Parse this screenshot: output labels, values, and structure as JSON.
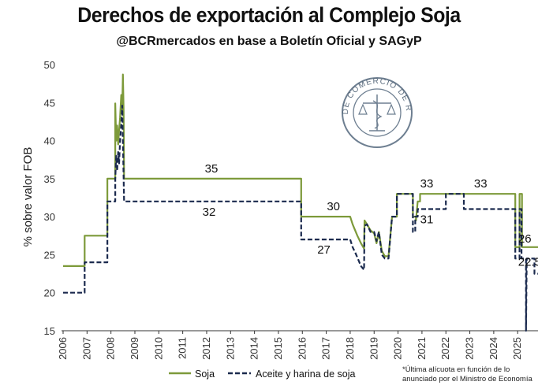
{
  "chart_data": {
    "type": "line",
    "title": "Derechos de exportación al Complejo Soja",
    "subtitle": "@BCRmercados en base a Boletín Oficial y SAGyP",
    "ylabel": "% sobre valor FOB",
    "xlabel": "",
    "xlim": [
      2006,
      2025.85
    ],
    "ylim": [
      15,
      50
    ],
    "x_ticks": [
      "2006",
      "2007",
      "2008",
      "2009",
      "2010",
      "2011",
      "2012",
      "2013",
      "2014",
      "2015",
      "2016",
      "2017",
      "2018",
      "2019",
      "2020",
      "2021",
      "2022",
      "2023",
      "2024",
      "2025"
    ],
    "y_ticks": [
      15,
      20,
      25,
      30,
      35,
      40,
      45,
      50
    ],
    "grid": false,
    "legend_position": "bottom",
    "series": [
      {
        "name": "Soja",
        "color": "#7d9a3a",
        "style": "solid",
        "points": [
          [
            2006.0,
            23.5
          ],
          [
            2006.9,
            23.5
          ],
          [
            2006.9,
            27.5
          ],
          [
            2007.85,
            27.5
          ],
          [
            2007.85,
            35
          ],
          [
            2008.18,
            35
          ],
          [
            2008.18,
            44.9
          ],
          [
            2008.22,
            40
          ],
          [
            2008.26,
            42
          ],
          [
            2008.3,
            39.5
          ],
          [
            2008.33,
            41
          ],
          [
            2008.38,
            43
          ],
          [
            2008.43,
            46
          ],
          [
            2008.47,
            44
          ],
          [
            2008.5,
            48.7
          ],
          [
            2008.53,
            44
          ],
          [
            2008.55,
            35
          ],
          [
            2015.95,
            35
          ],
          [
            2015.95,
            30
          ],
          [
            2018.0,
            30
          ],
          [
            2018.1,
            29
          ],
          [
            2018.3,
            27.5
          ],
          [
            2018.45,
            26.5
          ],
          [
            2018.58,
            25.8
          ],
          [
            2018.6,
            29.5
          ],
          [
            2018.7,
            29
          ],
          [
            2018.85,
            28.2
          ],
          [
            2019.0,
            27.8
          ],
          [
            2019.1,
            26.5
          ],
          [
            2019.2,
            28
          ],
          [
            2019.32,
            25.5
          ],
          [
            2019.45,
            24.8
          ],
          [
            2019.6,
            24.8
          ],
          [
            2019.75,
            30
          ],
          [
            2019.95,
            30
          ],
          [
            2019.95,
            33
          ],
          [
            2020.62,
            33
          ],
          [
            2020.62,
            30
          ],
          [
            2020.75,
            30
          ],
          [
            2020.75,
            29.5
          ],
          [
            2020.82,
            32
          ],
          [
            2020.92,
            32
          ],
          [
            2020.92,
            33
          ],
          [
            2022.15,
            33
          ],
          [
            2022.15,
            33
          ],
          [
            2024.9,
            33
          ],
          [
            2024.9,
            26
          ],
          [
            2025.08,
            26
          ],
          [
            2025.08,
            33
          ],
          [
            2025.18,
            33
          ],
          [
            2025.18,
            26
          ],
          [
            2025.85,
            26
          ]
        ]
      },
      {
        "name": "Aceite y harina de soja",
        "color": "#1b2a4e",
        "style": "dashed",
        "points": [
          [
            2006.0,
            20
          ],
          [
            2006.9,
            20
          ],
          [
            2006.9,
            24
          ],
          [
            2007.85,
            24
          ],
          [
            2007.85,
            32
          ],
          [
            2008.18,
            32
          ],
          [
            2008.18,
            35
          ],
          [
            2008.22,
            38
          ],
          [
            2008.26,
            36
          ],
          [
            2008.3,
            38.5
          ],
          [
            2008.34,
            37
          ],
          [
            2008.38,
            40
          ],
          [
            2008.43,
            42
          ],
          [
            2008.47,
            44.6
          ],
          [
            2008.5,
            40
          ],
          [
            2008.55,
            32
          ],
          [
            2015.95,
            32
          ],
          [
            2015.95,
            27
          ],
          [
            2018.0,
            27
          ],
          [
            2018.1,
            26
          ],
          [
            2018.25,
            25
          ],
          [
            2018.45,
            23.5
          ],
          [
            2018.58,
            23
          ],
          [
            2018.6,
            28.8
          ],
          [
            2018.7,
            29
          ],
          [
            2018.85,
            28
          ],
          [
            2019.0,
            28
          ],
          [
            2019.1,
            26.8
          ],
          [
            2019.2,
            28
          ],
          [
            2019.32,
            25
          ],
          [
            2019.45,
            24.5
          ],
          [
            2019.6,
            24.5
          ],
          [
            2019.75,
            30
          ],
          [
            2019.95,
            30
          ],
          [
            2019.95,
            33
          ],
          [
            2020.62,
            33
          ],
          [
            2020.62,
            28
          ],
          [
            2020.72,
            28
          ],
          [
            2020.72,
            30
          ],
          [
            2020.82,
            30
          ],
          [
            2020.82,
            31
          ],
          [
            2022.0,
            31
          ],
          [
            2022.0,
            33
          ],
          [
            2022.75,
            33
          ],
          [
            2022.75,
            31
          ],
          [
            2024.9,
            31
          ],
          [
            2024.9,
            24.5
          ],
          [
            2025.08,
            24.5
          ],
          [
            2025.08,
            31
          ],
          [
            2025.16,
            31
          ],
          [
            2025.16,
            24.5
          ],
          [
            2025.35,
            24.5
          ],
          [
            2025.35,
            15
          ],
          [
            2025.38,
            24.5
          ],
          [
            2025.7,
            24.5
          ],
          [
            2025.7,
            22.5
          ],
          [
            2025.85,
            22.5
          ]
        ]
      }
    ],
    "annotations": [
      {
        "text": "35",
        "x": 2012.2,
        "y": 35
      },
      {
        "text": "32",
        "x": 2012.1,
        "y": 32
      },
      {
        "text": "30",
        "x": 2017.3,
        "y": 30
      },
      {
        "text": "27",
        "x": 2016.9,
        "y": 27
      },
      {
        "text": "33",
        "x": 2021.2,
        "y": 33
      },
      {
        "text": "31",
        "x": 2021.2,
        "y": 31
      },
      {
        "text": "33",
        "x": 2023.45,
        "y": 33
      },
      {
        "text": "26",
        "x": 2025.3,
        "y": 26
      },
      {
        "text": "22.5",
        "x": 2025.5,
        "y": 22.5
      }
    ],
    "footnote": [
      "*Última alícuota en función de lo",
      "anunciado por el Ministro de Economía"
    ],
    "seal_text": "BOLSA DE COMERCIO DE ROSARIO"
  }
}
